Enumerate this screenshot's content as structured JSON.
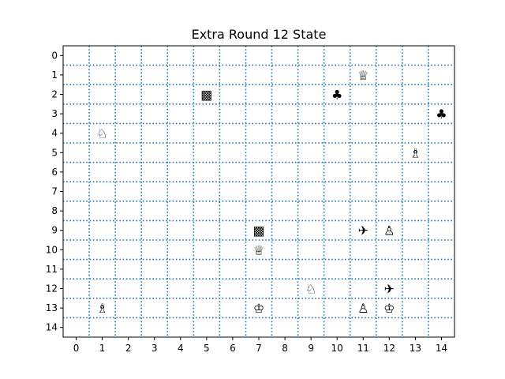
{
  "board": {
    "title": "Extra Round 12 State",
    "cols": 15,
    "rows": 15,
    "x_ticks": [
      "0",
      "1",
      "2",
      "3",
      "4",
      "5",
      "6",
      "7",
      "8",
      "9",
      "10",
      "11",
      "12",
      "13",
      "14"
    ],
    "y_ticks": [
      "0",
      "1",
      "2",
      "3",
      "4",
      "5",
      "6",
      "7",
      "8",
      "9",
      "10",
      "11",
      "12",
      "13",
      "14"
    ],
    "grid_color": "#1f77b4",
    "pieces": [
      {
        "name": "white-queen-icon",
        "glyph": "♕",
        "col": 11,
        "row": 1
      },
      {
        "name": "checker-block-icon",
        "glyph": "▩",
        "col": 5,
        "row": 2
      },
      {
        "name": "club-icon",
        "glyph": "♣",
        "col": 10,
        "row": 2
      },
      {
        "name": "club-icon",
        "glyph": "♣",
        "col": 14,
        "row": 3
      },
      {
        "name": "white-knight-icon",
        "glyph": "♘",
        "col": 1,
        "row": 4
      },
      {
        "name": "white-bishop-icon",
        "glyph": "♗",
        "col": 13,
        "row": 5
      },
      {
        "name": "checker-block-icon",
        "glyph": "▩",
        "col": 7,
        "row": 9
      },
      {
        "name": "airplane-icon",
        "glyph": "✈",
        "col": 11,
        "row": 9
      },
      {
        "name": "white-pawn-icon",
        "glyph": "♙",
        "col": 12,
        "row": 9
      },
      {
        "name": "white-queen-icon",
        "glyph": "♕",
        "col": 7,
        "row": 10
      },
      {
        "name": "white-knight-icon",
        "glyph": "♘",
        "col": 9,
        "row": 12
      },
      {
        "name": "airplane-icon",
        "glyph": "✈",
        "col": 12,
        "row": 12
      },
      {
        "name": "white-bishop-icon",
        "glyph": "♗",
        "col": 1,
        "row": 13
      },
      {
        "name": "white-king-icon",
        "glyph": "♔",
        "col": 7,
        "row": 13
      },
      {
        "name": "white-pawn-icon",
        "glyph": "♙",
        "col": 11,
        "row": 13
      },
      {
        "name": "white-king-icon",
        "glyph": "♔",
        "col": 12,
        "row": 13
      }
    ]
  }
}
